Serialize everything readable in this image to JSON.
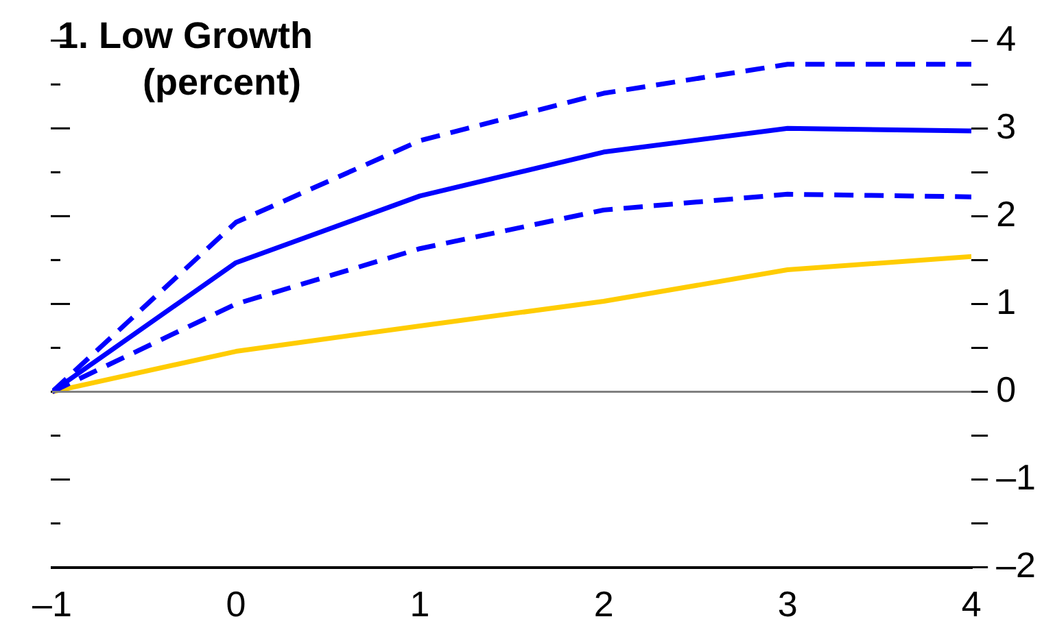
{
  "chart_data": {
    "type": "line",
    "title": "1. Low Growth",
    "subtitle": "(percent)",
    "x": [
      -1,
      0,
      1,
      2,
      3,
      4
    ],
    "series": [
      {
        "color": "#0000ff",
        "line_style": "dashed",
        "values": [
          0,
          1.93,
          2.86,
          3.4,
          3.73,
          3.73
        ]
      },
      {
        "color": "#0000ff",
        "line_style": "solid",
        "values": [
          0,
          1.47,
          2.23,
          2.73,
          3.0,
          2.97
        ]
      },
      {
        "color": "#0000ff",
        "line_style": "dashed",
        "values": [
          0,
          1.0,
          1.63,
          2.07,
          2.25,
          2.22
        ]
      },
      {
        "color": "#ffcc00",
        "line_style": "solid",
        "values": [
          0,
          0.46,
          0.75,
          1.03,
          1.39,
          1.54
        ]
      }
    ],
    "xlim": [
      -1,
      4
    ],
    "xticks": [
      {
        "value": -1,
        "label": "–1"
      },
      0,
      1,
      2,
      3,
      4
    ],
    "ylim": [
      -2,
      4
    ],
    "yticks": [
      {
        "value": -2,
        "label": "–2"
      },
      {
        "value": -1.5,
        "label": null
      },
      {
        "value": -1,
        "label": "–1"
      },
      {
        "value": -0.5,
        "label": null
      },
      0,
      {
        "value": 0.5,
        "label": null
      },
      1,
      {
        "value": 1.5,
        "label": null
      },
      2,
      {
        "value": 2.5,
        "label": null
      },
      3,
      {
        "value": 3.5,
        "label": null
      },
      4
    ],
    "ref_lines": [
      {
        "axis": "y",
        "value": 0,
        "color": "#808080"
      }
    ],
    "legend": false,
    "grid": false,
    "marker": "none"
  }
}
